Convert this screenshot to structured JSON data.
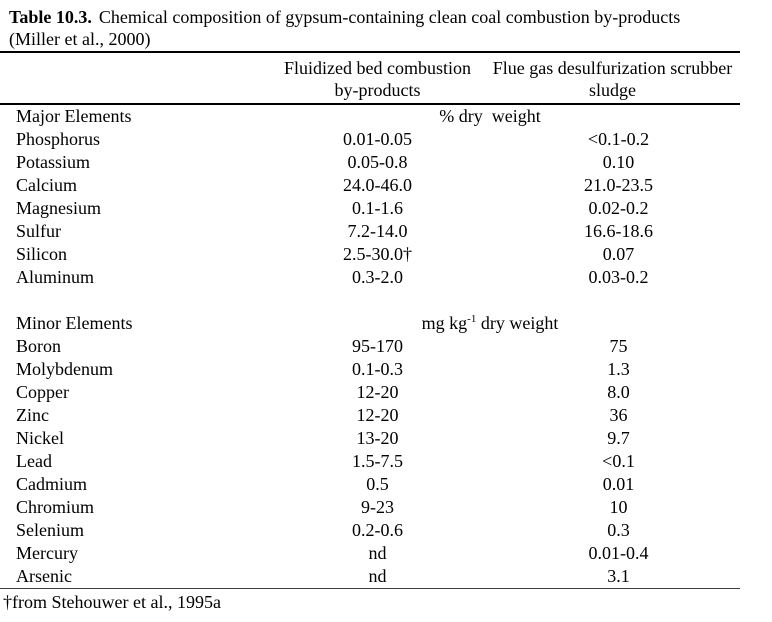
{
  "colors": {
    "text": "#000000",
    "background": "#ffffff",
    "rule": "#000000"
  },
  "caption": {
    "label": "Table 10.3.",
    "line1_rest": "Chemical composition of gypsum-containing clean coal combustion by-products",
    "line2": "(Miller et al., 2000)"
  },
  "table": {
    "column_headers": [
      "",
      "Fluidized bed combustion by-products",
      "Flue gas desulfurization scrubber sludge"
    ],
    "sections": [
      {
        "name": "Major Elements",
        "unit": {
          "prefix": "% dry  weight",
          "sup": "",
          "suffix": ""
        },
        "rows": [
          [
            "Phosphorus",
            "0.01-0.05",
            "<0.1-0.2"
          ],
          [
            "Potassium",
            "0.05-0.8",
            "0.10"
          ],
          [
            "Calcium",
            "24.0-46.0",
            "21.0-23.5"
          ],
          [
            "Magnesium",
            "0.1-1.6",
            "0.02-0.2"
          ],
          [
            "Sulfur",
            "7.2-14.0",
            "16.6-18.6"
          ],
          [
            "Silicon",
            "2.5-30.0†",
            "0.07"
          ],
          [
            "Aluminum",
            "0.3-2.0",
            "0.03-0.2"
          ]
        ]
      },
      {
        "name": "Minor Elements",
        "unit": {
          "prefix": "mg kg",
          "sup": "-1",
          "suffix": " dry weight"
        },
        "rows": [
          [
            "Boron",
            "95-170",
            "75"
          ],
          [
            "Molybdenum",
            "0.1-0.3",
            "1.3"
          ],
          [
            "Copper",
            "12-20",
            "8.0"
          ],
          [
            "Zinc",
            "12-20",
            "36"
          ],
          [
            "Nickel",
            "13-20",
            "9.7"
          ],
          [
            "Lead",
            "1.5-7.5",
            "<0.1"
          ],
          [
            "Cadmium",
            "0.5",
            "0.01"
          ],
          [
            "Chromium",
            "9-23",
            "10"
          ],
          [
            "Selenium",
            "0.2-0.6",
            "0.3"
          ],
          [
            "Mercury",
            "nd",
            "0.01-0.4"
          ],
          [
            "Arsenic",
            "nd",
            "3.1"
          ]
        ]
      }
    ],
    "footnote": "†from Stehouwer et al., 1995a"
  }
}
